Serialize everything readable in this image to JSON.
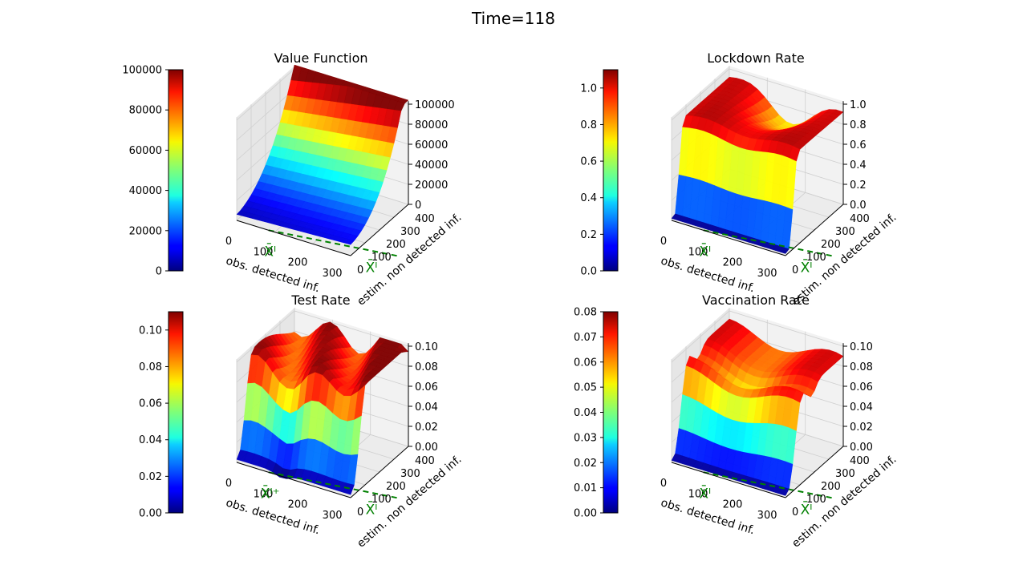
{
  "figure_title": "Time=118",
  "colormap": "jet",
  "chart_data": [
    {
      "type": "surface3d",
      "title": "Value Function",
      "xlabel": "obs. detected inf.",
      "ylabel": "estim. non detected inf.",
      "x_ticks": [
        "0",
        "100",
        "200",
        "300"
      ],
      "y_ticks": [
        "0",
        "100",
        "200",
        "300",
        "400"
      ],
      "z_ticks": [
        "0",
        "20000",
        "40000",
        "60000",
        "80000",
        "100000"
      ],
      "zlim": [
        0,
        100000
      ],
      "colorbar_ticks": [
        "0",
        "20000",
        "40000",
        "60000",
        "80000",
        "100000"
      ],
      "colorbar_range": [
        0,
        100000
      ],
      "threshold_x_label": "X̄ᴵ",
      "threshold_y_label": "X̄ᴵ",
      "shape": "value"
    },
    {
      "type": "surface3d",
      "title": "Lockdown Rate",
      "xlabel": "obs. detected inf.",
      "ylabel": "estim. non detected inf.",
      "x_ticks": [
        "0",
        "100",
        "200",
        "300"
      ],
      "y_ticks": [
        "0",
        "100",
        "200",
        "300",
        "400"
      ],
      "z_ticks": [
        "0.0",
        "0.2",
        "0.4",
        "0.6",
        "0.8",
        "1.0"
      ],
      "zlim": [
        0,
        1.0
      ],
      "colorbar_ticks": [
        "0.0",
        "0.2",
        "0.4",
        "0.6",
        "0.8",
        "1.0"
      ],
      "colorbar_range": [
        0,
        1.1
      ],
      "threshold_x_label": "X̄ᴵ",
      "threshold_y_label": "X̄ᴵ",
      "shape": "lockdown"
    },
    {
      "type": "surface3d",
      "title": "Test Rate",
      "xlabel": "obs. detected inf.",
      "ylabel": "estim. non detected inf.",
      "x_ticks": [
        "0",
        "100",
        "200",
        "300"
      ],
      "y_ticks": [
        "0",
        "100",
        "200",
        "300",
        "400"
      ],
      "z_ticks": [
        "0.00",
        "0.02",
        "0.04",
        "0.06",
        "0.08",
        "0.10"
      ],
      "zlim": [
        0,
        0.11
      ],
      "colorbar_ticks": [
        "0.00",
        "0.02",
        "0.04",
        "0.06",
        "0.08",
        "0.10"
      ],
      "colorbar_range": [
        0,
        0.11
      ],
      "threshold_x_label": "X̄ᴵ⁺",
      "threshold_y_label": "X̄ᴵ",
      "shape": "test"
    },
    {
      "type": "surface3d",
      "title": "Vaccination Rate",
      "xlabel": "obs. detected inf.",
      "ylabel": "estim. non detected inf.",
      "x_ticks": [
        "0",
        "100",
        "200",
        "300"
      ],
      "y_ticks": [
        "0",
        "100",
        "200",
        "300",
        "400"
      ],
      "z_ticks": [
        "0.00",
        "0.02",
        "0.04",
        "0.06",
        "0.08",
        "0.10"
      ],
      "zlim": [
        0,
        0.1
      ],
      "colorbar_ticks": [
        "0.00",
        "0.01",
        "0.02",
        "0.03",
        "0.04",
        "0.05",
        "0.06",
        "0.07",
        "0.08"
      ],
      "colorbar_range": [
        0,
        0.08
      ],
      "threshold_x_label": "X̄ᴵ",
      "threshold_y_label": "X̄ᴵ",
      "shape": "vaccination"
    }
  ]
}
